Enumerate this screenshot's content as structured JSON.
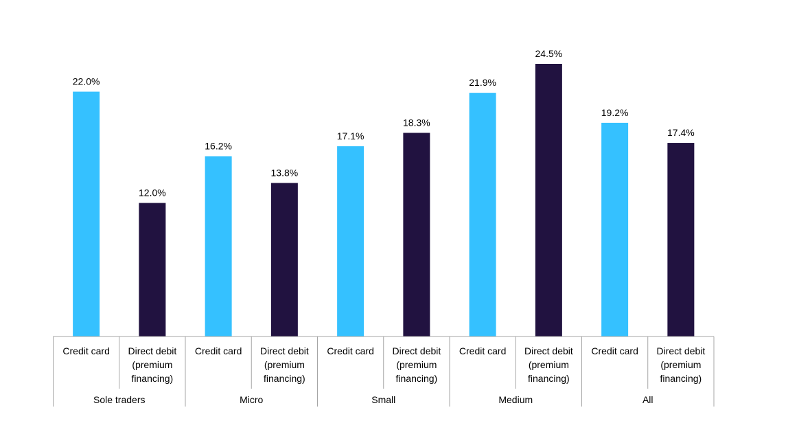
{
  "chart_data": {
    "type": "bar",
    "groups": [
      "Sole traders",
      "Micro",
      "Small",
      "Medium",
      "All"
    ],
    "subcategories": [
      {
        "lines": [
          "Credit card"
        ]
      },
      {
        "lines": [
          "Direct debit",
          "(premium",
          "financing)"
        ]
      }
    ],
    "series": [
      {
        "key": "credit_card",
        "values": [
          22.0,
          16.2,
          17.1,
          21.9,
          19.2
        ],
        "color": "#35c1ff"
      },
      {
        "key": "direct_debit",
        "values": [
          12.0,
          13.8,
          18.3,
          24.5,
          17.4
        ],
        "color": "#211240"
      }
    ],
    "value_labels": [
      [
        "22.0%",
        "16.2%",
        "17.1%",
        "21.9%",
        "19.2%"
      ],
      [
        "12.0%",
        "13.8%",
        "18.3%",
        "24.5%",
        "17.4%"
      ]
    ],
    "title": "",
    "xlabel": "",
    "ylabel": "",
    "ylim": [
      0,
      24.5
    ],
    "grid": false,
    "legend": "none"
  }
}
